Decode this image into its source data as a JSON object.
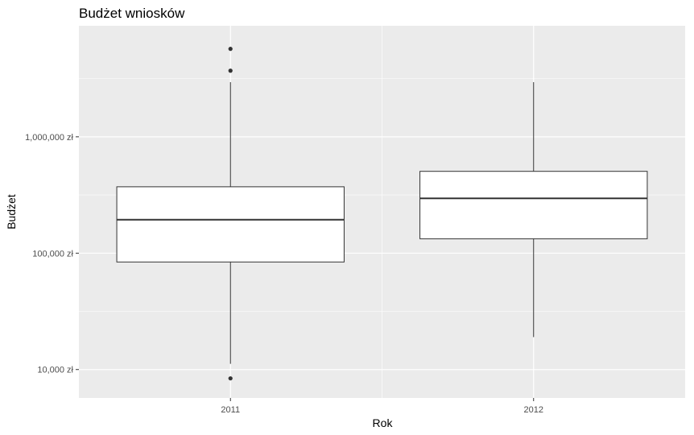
{
  "chart_data": {
    "type": "box",
    "title": "Budżet wniosków",
    "xlabel": "Rok",
    "ylabel": "Budżet",
    "y_scale": "log10",
    "ylim": [
      5700,
      9000000
    ],
    "y_ticks": [
      {
        "value": 10000,
        "label": "10,000 zł"
      },
      {
        "value": 100000,
        "label": "100,000 zł"
      },
      {
        "value": 1000000,
        "label": "1,000,000 zł"
      }
    ],
    "grid": true,
    "categories": [
      "2011",
      "2012"
    ],
    "boxes": [
      {
        "category": "2011",
        "whisker_low": 11200,
        "q1": 84000,
        "median": 194000,
        "q3": 372000,
        "whisker_high": 2950000,
        "outliers": [
          8400,
          3700000,
          5700000
        ]
      },
      {
        "category": "2012",
        "whisker_low": 19000,
        "q1": 133000,
        "median": 296000,
        "q3": 505000,
        "whisker_high": 2950000,
        "outliers": []
      }
    ]
  }
}
